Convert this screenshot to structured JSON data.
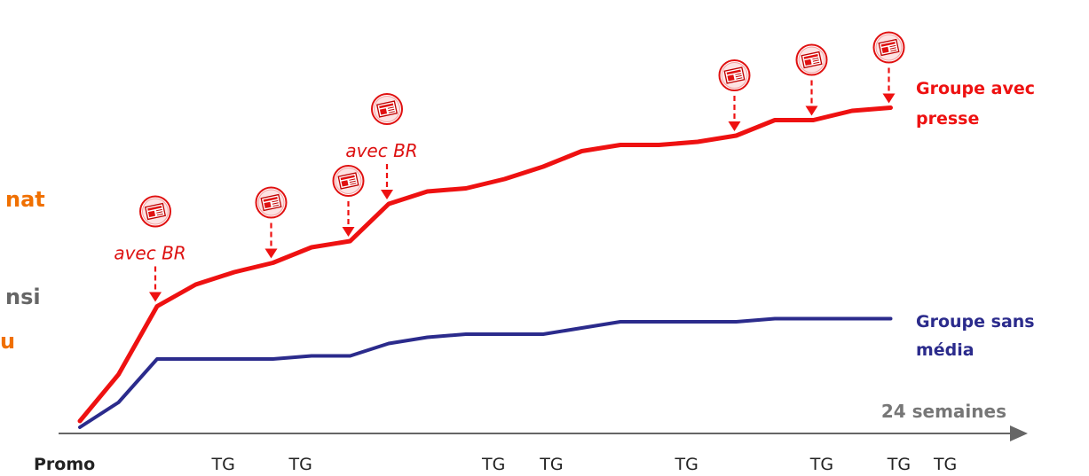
{
  "left_fragments": [
    {
      "text": "nat",
      "color": "#f07000"
    },
    {
      "text": "nsi",
      "color": "#666666"
    },
    {
      "text": "u",
      "color": "#f07000"
    }
  ],
  "colors": {
    "press": "#ee1111",
    "no_media": "#2b2b8c",
    "axis": "#666666",
    "annotation": "#dd1111"
  },
  "icon": "newspaper-icon",
  "chart_data": {
    "type": "line",
    "xlabel": "24 semaines",
    "xlim": [
      0,
      24
    ],
    "ylim": [
      0,
      100
    ],
    "x_tick_labels": [
      {
        "label": "Promo",
        "x": 0
      },
      {
        "label": "TG",
        "x": 3
      },
      {
        "label": "TG",
        "x": 5
      },
      {
        "label": "TG",
        "x": 10
      },
      {
        "label": "TG",
        "x": 11.5
      },
      {
        "label": "TG",
        "x": 15
      },
      {
        "label": "TG",
        "x": 18.5
      },
      {
        "label": "TG",
        "x": 20.5
      },
      {
        "label": "TG",
        "x": 21.7
      }
    ],
    "series": [
      {
        "name": "Groupe avec presse",
        "points": [
          [
            0,
            2
          ],
          [
            1,
            17
          ],
          [
            2,
            39
          ],
          [
            3,
            46
          ],
          [
            4,
            50
          ],
          [
            5,
            53
          ],
          [
            6,
            58
          ],
          [
            7,
            60
          ],
          [
            8,
            72
          ],
          [
            9,
            76
          ],
          [
            10,
            77
          ],
          [
            11,
            80
          ],
          [
            12,
            84
          ],
          [
            13,
            89
          ],
          [
            14,
            91
          ],
          [
            15,
            91
          ],
          [
            16,
            92
          ],
          [
            17,
            94
          ],
          [
            18,
            99
          ],
          [
            19,
            99
          ],
          [
            20,
            102
          ],
          [
            21,
            103
          ]
        ]
      },
      {
        "name": "Groupe sans média",
        "points": [
          [
            0,
            0
          ],
          [
            1,
            8
          ],
          [
            2,
            22
          ],
          [
            3,
            22
          ],
          [
            4,
            22
          ],
          [
            5,
            22
          ],
          [
            6,
            23
          ],
          [
            7,
            23
          ],
          [
            8,
            27
          ],
          [
            9,
            29
          ],
          [
            10,
            30
          ],
          [
            11,
            30
          ],
          [
            12,
            30
          ],
          [
            13,
            32
          ],
          [
            14,
            34
          ],
          [
            15,
            34
          ],
          [
            16,
            34
          ],
          [
            17,
            34
          ],
          [
            18,
            35
          ],
          [
            19,
            35
          ],
          [
            20,
            35
          ],
          [
            21,
            35
          ]
        ]
      }
    ],
    "press_events": [
      2,
      5,
      7,
      8,
      17,
      19,
      21
    ],
    "annotations": [
      {
        "text": "avec BR",
        "at_event": 2
      },
      {
        "text": "avec BR",
        "at_event": 8
      }
    ]
  }
}
